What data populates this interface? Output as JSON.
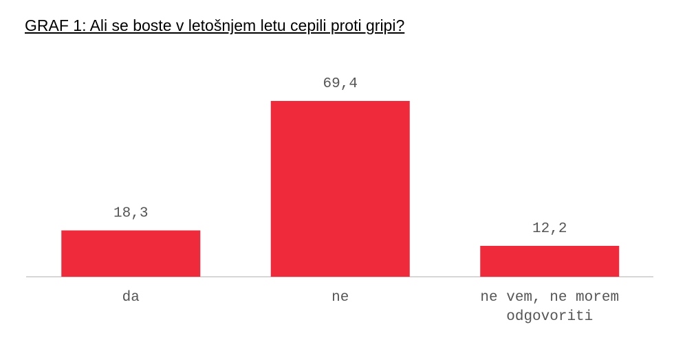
{
  "chart_data": {
    "type": "bar",
    "title": "GRAF 1: Ali se boste v letošnjem letu cepili proti gripi?",
    "categories": [
      "da",
      "ne",
      "ne vem, ne morem odgovoriti"
    ],
    "values": [
      18.3,
      69.4,
      12.2
    ],
    "value_labels": [
      "18,3",
      "69,4",
      "12,2"
    ],
    "color": "#ee2a3b"
  }
}
